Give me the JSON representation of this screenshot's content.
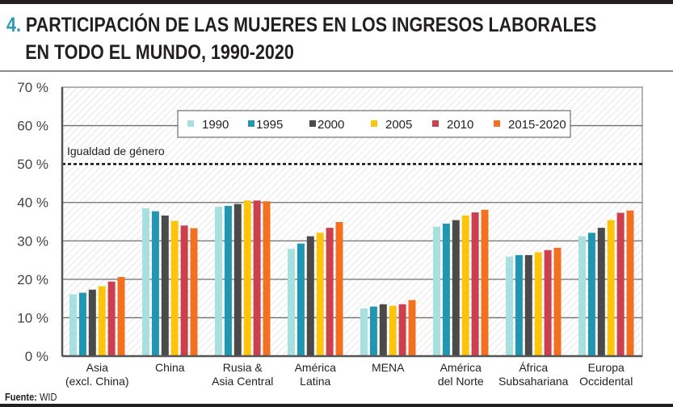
{
  "header": {
    "number": "4.",
    "title_line1": "PARTICIPACIÓN DE LAS MUJERES EN LOS INGRESOS LABORALES",
    "title_line2": "EN TODO EL MUNDO, 1990-2020"
  },
  "footer": {
    "source_label": "Fuente:",
    "source_value": "WID"
  },
  "chart_data": {
    "type": "bar",
    "title": "PARTICIPACIÓN DE LAS MUJERES EN LOS INGRESOS LABORALES EN TODO EL MUNDO, 1990-2020",
    "xlabel": "",
    "ylabel": "",
    "ylim": [
      0,
      70
    ],
    "yticks": [
      0,
      10,
      20,
      30,
      40,
      50,
      60,
      70
    ],
    "ytick_labels": [
      "0 %",
      "10 %",
      "20 %",
      "30 %",
      "40 %",
      "50 %",
      "60 %",
      "70 %"
    ],
    "grid": true,
    "legend_position": "top-center",
    "categories": [
      [
        "Asia",
        "(excl. China)"
      ],
      [
        "China"
      ],
      [
        "Rusia &",
        "Asia Central"
      ],
      [
        "América",
        "Latina"
      ],
      [
        "MENA"
      ],
      [
        "América",
        "del Norte"
      ],
      [
        "África",
        "Subsahariana"
      ],
      [
        "Europa",
        "Occidental"
      ]
    ],
    "series": [
      {
        "name": "1990",
        "color": "#a8e0df",
        "values": [
          16.1,
          38.5,
          38.9,
          27.9,
          12.4,
          33.7,
          25.9,
          31.2
        ]
      },
      {
        "name": "1995",
        "color": "#2196b0",
        "values": [
          16.5,
          37.7,
          39.1,
          29.3,
          12.9,
          34.5,
          26.3,
          32.1
        ]
      },
      {
        "name": "2000",
        "color": "#4a4a4a",
        "values": [
          17.3,
          36.6,
          39.6,
          31.2,
          13.5,
          35.4,
          26.3,
          33.4
        ]
      },
      {
        "name": "2005",
        "color": "#fcc40a",
        "values": [
          18.2,
          35.2,
          40.5,
          32.1,
          13.1,
          36.6,
          27.0,
          35.4
        ]
      },
      {
        "name": "2010",
        "color": "#cc3f4e",
        "values": [
          19.4,
          34.0,
          40.5,
          33.4,
          13.5,
          37.4,
          27.6,
          37.3
        ]
      },
      {
        "name": "2015-2020",
        "color": "#f37021",
        "values": [
          20.6,
          33.3,
          40.3,
          34.9,
          14.6,
          38.1,
          28.2,
          37.9
        ]
      }
    ],
    "reference_line": {
      "value": 50,
      "label": "Igualdad de género",
      "style": "dotted"
    }
  }
}
